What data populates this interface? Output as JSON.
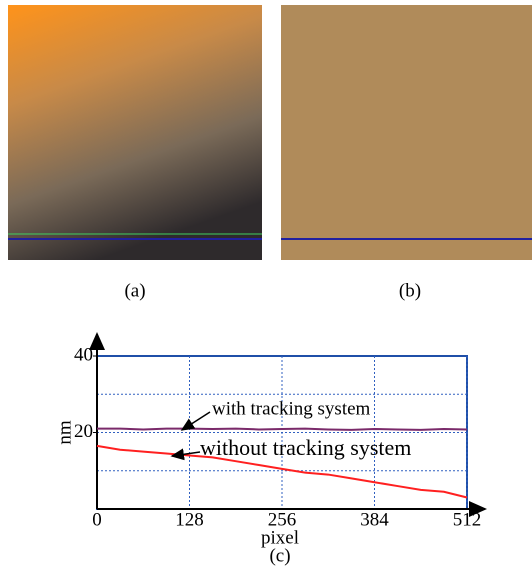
{
  "panel_labels": [
    "(a)",
    "(b)"
  ],
  "chart_data": {
    "type": "line",
    "xlabel": "pixel",
    "ylabel": "nm",
    "caption": "(c)",
    "x": [
      0,
      32,
      64,
      96,
      128,
      160,
      192,
      224,
      256,
      288,
      320,
      352,
      384,
      416,
      448,
      480,
      512
    ],
    "series": [
      {
        "name": "with tracking system",
        "color": "#7a2a6a",
        "values": [
          21,
          21,
          20.8,
          21,
          21,
          20.9,
          21,
          20.8,
          20.9,
          21,
          20.8,
          20.7,
          20.9,
          20.8,
          20.7,
          20.9,
          20.8
        ]
      },
      {
        "name": "without tracking system",
        "color": "#ff2020",
        "values": [
          16.5,
          15.5,
          15,
          14.5,
          14,
          13.5,
          12.5,
          11.5,
          10.5,
          9.5,
          9,
          8,
          7,
          6,
          5,
          4.5,
          3
        ]
      }
    ],
    "xlim": [
      0,
      512
    ],
    "xticks": [
      0,
      128,
      256,
      384,
      512
    ],
    "ylim": [
      0,
      40
    ],
    "yticks": [
      20,
      40
    ],
    "ygrid": [
      10,
      20,
      30
    ],
    "grid": true
  }
}
